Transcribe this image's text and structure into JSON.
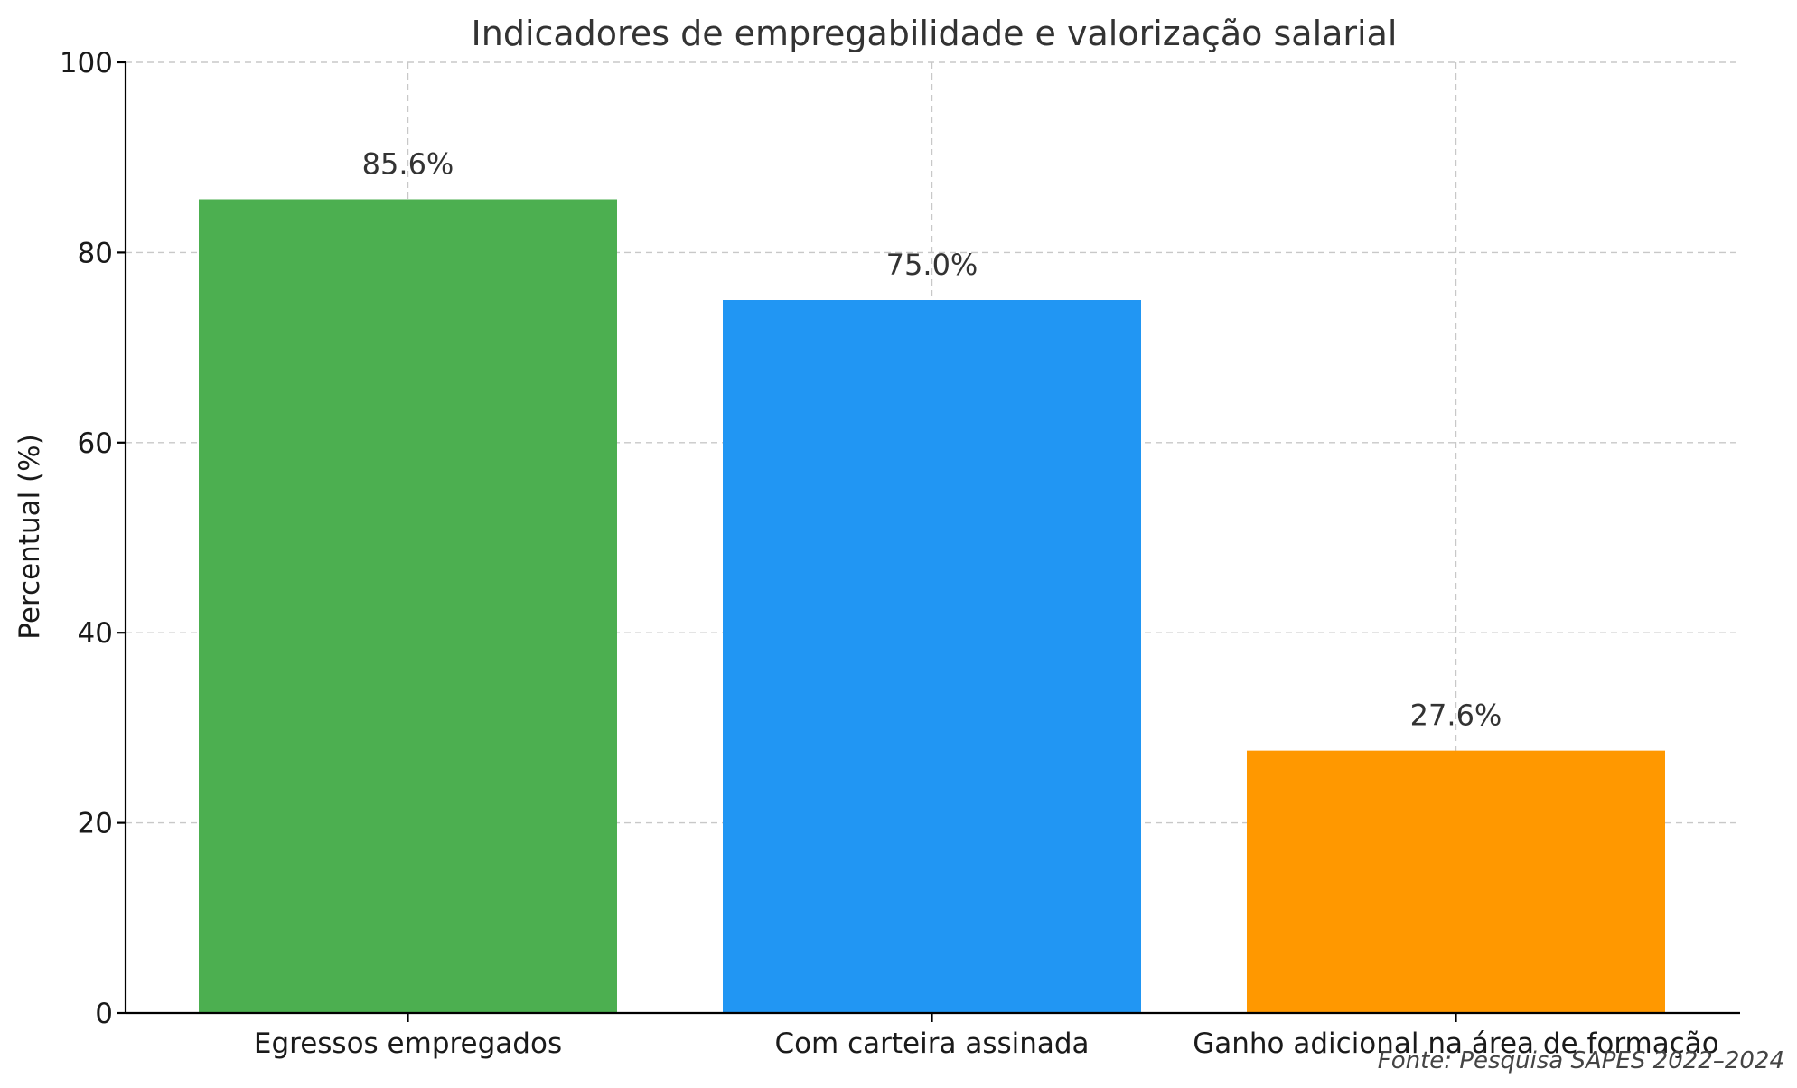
{
  "chart_data": {
    "type": "bar",
    "title": "Indicadores de empregabilidade e valorização salarial",
    "xlabel": "",
    "ylabel": "Percentual (%)",
    "ylim": [
      0,
      100
    ],
    "yticks": [
      0,
      20,
      40,
      60,
      80,
      100
    ],
    "grid": true,
    "categories": [
      "Egressos empregados",
      "Com carteira assinada",
      "Ganho adicional na área de formação"
    ],
    "values": [
      85.6,
      75.0,
      27.6
    ],
    "data_labels": [
      "85.6%",
      "75.0%",
      "27.6%"
    ],
    "colors": [
      "#4caf50",
      "#2196f3",
      "#ff9800"
    ],
    "source": "Fonte: Pesquisa SAPES 2022–2024"
  }
}
